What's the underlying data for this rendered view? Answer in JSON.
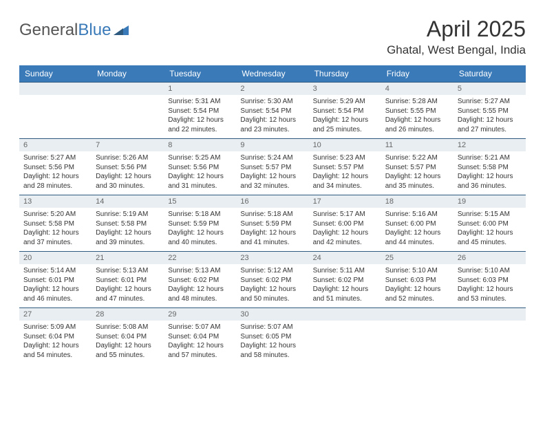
{
  "brand": {
    "part1": "General",
    "part2": "Blue"
  },
  "title": "April 2025",
  "location": "Ghatal, West Bengal, India",
  "colors": {
    "header_bg": "#3a7ab8",
    "header_fg": "#ffffff",
    "daynum_bg": "#e8eef2",
    "daynum_fg": "#666666",
    "rule": "#2e5a80",
    "text": "#333333",
    "page_bg": "#ffffff"
  },
  "weekdays": [
    "Sunday",
    "Monday",
    "Tuesday",
    "Wednesday",
    "Thursday",
    "Friday",
    "Saturday"
  ],
  "weeks": [
    [
      null,
      null,
      {
        "n": "1",
        "sr": "Sunrise: 5:31 AM",
        "ss": "Sunset: 5:54 PM",
        "d1": "Daylight: 12 hours",
        "d2": "and 22 minutes."
      },
      {
        "n": "2",
        "sr": "Sunrise: 5:30 AM",
        "ss": "Sunset: 5:54 PM",
        "d1": "Daylight: 12 hours",
        "d2": "and 23 minutes."
      },
      {
        "n": "3",
        "sr": "Sunrise: 5:29 AM",
        "ss": "Sunset: 5:54 PM",
        "d1": "Daylight: 12 hours",
        "d2": "and 25 minutes."
      },
      {
        "n": "4",
        "sr": "Sunrise: 5:28 AM",
        "ss": "Sunset: 5:55 PM",
        "d1": "Daylight: 12 hours",
        "d2": "and 26 minutes."
      },
      {
        "n": "5",
        "sr": "Sunrise: 5:27 AM",
        "ss": "Sunset: 5:55 PM",
        "d1": "Daylight: 12 hours",
        "d2": "and 27 minutes."
      }
    ],
    [
      {
        "n": "6",
        "sr": "Sunrise: 5:27 AM",
        "ss": "Sunset: 5:56 PM",
        "d1": "Daylight: 12 hours",
        "d2": "and 28 minutes."
      },
      {
        "n": "7",
        "sr": "Sunrise: 5:26 AM",
        "ss": "Sunset: 5:56 PM",
        "d1": "Daylight: 12 hours",
        "d2": "and 30 minutes."
      },
      {
        "n": "8",
        "sr": "Sunrise: 5:25 AM",
        "ss": "Sunset: 5:56 PM",
        "d1": "Daylight: 12 hours",
        "d2": "and 31 minutes."
      },
      {
        "n": "9",
        "sr": "Sunrise: 5:24 AM",
        "ss": "Sunset: 5:57 PM",
        "d1": "Daylight: 12 hours",
        "d2": "and 32 minutes."
      },
      {
        "n": "10",
        "sr": "Sunrise: 5:23 AM",
        "ss": "Sunset: 5:57 PM",
        "d1": "Daylight: 12 hours",
        "d2": "and 34 minutes."
      },
      {
        "n": "11",
        "sr": "Sunrise: 5:22 AM",
        "ss": "Sunset: 5:57 PM",
        "d1": "Daylight: 12 hours",
        "d2": "and 35 minutes."
      },
      {
        "n": "12",
        "sr": "Sunrise: 5:21 AM",
        "ss": "Sunset: 5:58 PM",
        "d1": "Daylight: 12 hours",
        "d2": "and 36 minutes."
      }
    ],
    [
      {
        "n": "13",
        "sr": "Sunrise: 5:20 AM",
        "ss": "Sunset: 5:58 PM",
        "d1": "Daylight: 12 hours",
        "d2": "and 37 minutes."
      },
      {
        "n": "14",
        "sr": "Sunrise: 5:19 AM",
        "ss": "Sunset: 5:58 PM",
        "d1": "Daylight: 12 hours",
        "d2": "and 39 minutes."
      },
      {
        "n": "15",
        "sr": "Sunrise: 5:18 AM",
        "ss": "Sunset: 5:59 PM",
        "d1": "Daylight: 12 hours",
        "d2": "and 40 minutes."
      },
      {
        "n": "16",
        "sr": "Sunrise: 5:18 AM",
        "ss": "Sunset: 5:59 PM",
        "d1": "Daylight: 12 hours",
        "d2": "and 41 minutes."
      },
      {
        "n": "17",
        "sr": "Sunrise: 5:17 AM",
        "ss": "Sunset: 6:00 PM",
        "d1": "Daylight: 12 hours",
        "d2": "and 42 minutes."
      },
      {
        "n": "18",
        "sr": "Sunrise: 5:16 AM",
        "ss": "Sunset: 6:00 PM",
        "d1": "Daylight: 12 hours",
        "d2": "and 44 minutes."
      },
      {
        "n": "19",
        "sr": "Sunrise: 5:15 AM",
        "ss": "Sunset: 6:00 PM",
        "d1": "Daylight: 12 hours",
        "d2": "and 45 minutes."
      }
    ],
    [
      {
        "n": "20",
        "sr": "Sunrise: 5:14 AM",
        "ss": "Sunset: 6:01 PM",
        "d1": "Daylight: 12 hours",
        "d2": "and 46 minutes."
      },
      {
        "n": "21",
        "sr": "Sunrise: 5:13 AM",
        "ss": "Sunset: 6:01 PM",
        "d1": "Daylight: 12 hours",
        "d2": "and 47 minutes."
      },
      {
        "n": "22",
        "sr": "Sunrise: 5:13 AM",
        "ss": "Sunset: 6:02 PM",
        "d1": "Daylight: 12 hours",
        "d2": "and 48 minutes."
      },
      {
        "n": "23",
        "sr": "Sunrise: 5:12 AM",
        "ss": "Sunset: 6:02 PM",
        "d1": "Daylight: 12 hours",
        "d2": "and 50 minutes."
      },
      {
        "n": "24",
        "sr": "Sunrise: 5:11 AM",
        "ss": "Sunset: 6:02 PM",
        "d1": "Daylight: 12 hours",
        "d2": "and 51 minutes."
      },
      {
        "n": "25",
        "sr": "Sunrise: 5:10 AM",
        "ss": "Sunset: 6:03 PM",
        "d1": "Daylight: 12 hours",
        "d2": "and 52 minutes."
      },
      {
        "n": "26",
        "sr": "Sunrise: 5:10 AM",
        "ss": "Sunset: 6:03 PM",
        "d1": "Daylight: 12 hours",
        "d2": "and 53 minutes."
      }
    ],
    [
      {
        "n": "27",
        "sr": "Sunrise: 5:09 AM",
        "ss": "Sunset: 6:04 PM",
        "d1": "Daylight: 12 hours",
        "d2": "and 54 minutes."
      },
      {
        "n": "28",
        "sr": "Sunrise: 5:08 AM",
        "ss": "Sunset: 6:04 PM",
        "d1": "Daylight: 12 hours",
        "d2": "and 55 minutes."
      },
      {
        "n": "29",
        "sr": "Sunrise: 5:07 AM",
        "ss": "Sunset: 6:04 PM",
        "d1": "Daylight: 12 hours",
        "d2": "and 57 minutes."
      },
      {
        "n": "30",
        "sr": "Sunrise: 5:07 AM",
        "ss": "Sunset: 6:05 PM",
        "d1": "Daylight: 12 hours",
        "d2": "and 58 minutes."
      },
      null,
      null,
      null
    ]
  ]
}
